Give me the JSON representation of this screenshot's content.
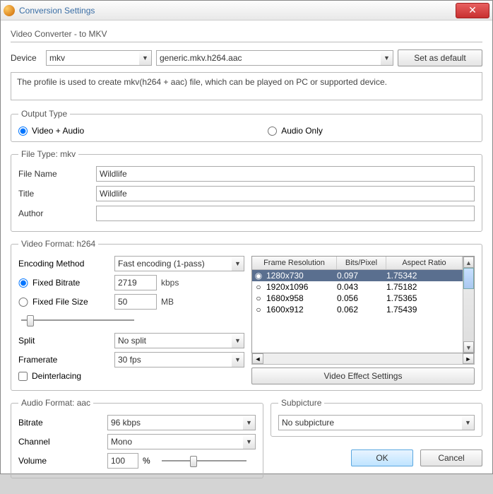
{
  "window": {
    "title": "Conversion Settings"
  },
  "header": {
    "section": "Video Converter - to MKV"
  },
  "device": {
    "label": "Device",
    "value": "mkv",
    "profile": "generic.mkv.h264.aac",
    "set_default": "Set as default"
  },
  "description": "The profile is used to create mkv(h264 + aac) file, which can be played on PC or supported device.",
  "output_type": {
    "legend": "Output Type",
    "video_audio": "Video + Audio",
    "audio_only": "Audio Only",
    "selected": "video_audio"
  },
  "file_type": {
    "legend": "File Type: mkv",
    "file_name_label": "File Name",
    "file_name": "Wildlife",
    "title_label": "Title",
    "title": "Wildlife",
    "author_label": "Author",
    "author": ""
  },
  "video_format": {
    "legend": "Video Format: h264",
    "encoding_method_label": "Encoding Method",
    "encoding_method": "Fast encoding (1-pass)",
    "fixed_bitrate_label": "Fixed Bitrate",
    "fixed_bitrate": "2719",
    "bitrate_unit": "kbps",
    "fixed_filesize_label": "Fixed File Size",
    "fixed_filesize": "50",
    "filesize_unit": "MB",
    "bitrate_mode": "fixed_bitrate",
    "split_label": "Split",
    "split": "No split",
    "framerate_label": "Framerate",
    "framerate": "30 fps",
    "deinterlacing_label": "Deinterlacing",
    "table": {
      "headers": {
        "c1": "Frame Resolution",
        "c2": "Bits/Pixel",
        "c3": "Aspect Ratio"
      },
      "rows": [
        {
          "res": "1280x730",
          "bpp": "0.097",
          "ar": "1.75342",
          "selected": true
        },
        {
          "res": "1920x1096",
          "bpp": "0.043",
          "ar": "1.75182",
          "selected": false
        },
        {
          "res": "1680x958",
          "bpp": "0.056",
          "ar": "1.75365",
          "selected": false
        },
        {
          "res": "1600x912",
          "bpp": "0.062",
          "ar": "1.75439",
          "selected": false
        }
      ]
    },
    "video_effect_btn": "Video Effect Settings"
  },
  "audio_format": {
    "legend": "Audio Format: aac",
    "bitrate_label": "Bitrate",
    "bitrate": "96 kbps",
    "channel_label": "Channel",
    "channel": "Mono",
    "volume_label": "Volume",
    "volume": "100",
    "volume_unit": "%"
  },
  "subpicture": {
    "legend": "Subpicture",
    "value": "No subpicture"
  },
  "footer": {
    "ok": "OK",
    "cancel": "Cancel"
  },
  "colors": {
    "selected_row_bg": "#5a6f8f",
    "selected_row_fg": "#ffffff",
    "link_title": "#3a6ea5"
  }
}
